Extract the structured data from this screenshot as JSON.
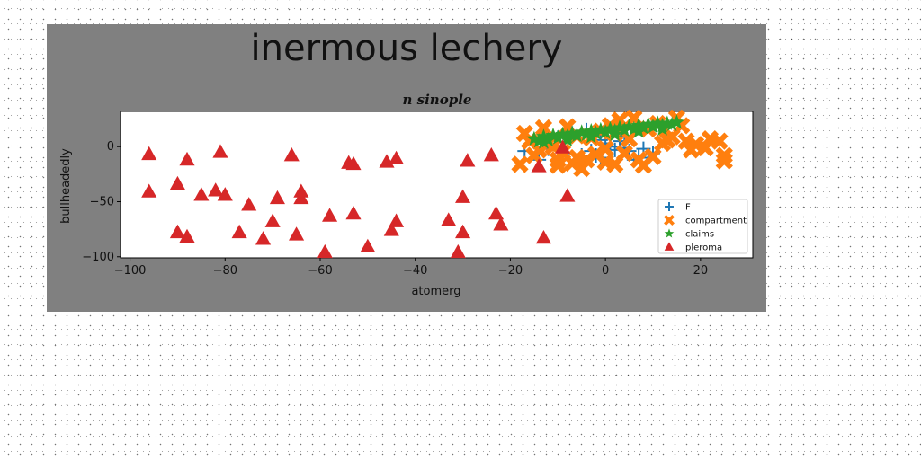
{
  "chart_data": {
    "type": "scatter",
    "title": "inermous lechery",
    "subtitle": "n sinople",
    "xlabel": "atomerg",
    "ylabel": "bullheadedly",
    "xlim": [
      -102,
      31
    ],
    "ylim": [
      -101,
      32
    ],
    "xticks": [
      -100,
      -80,
      -60,
      -40,
      -20,
      0,
      20
    ],
    "yticks": [
      0,
      -50,
      -100
    ],
    "grid": false,
    "legend_position": "lower-right",
    "series": [
      {
        "name": "F",
        "marker": "plus",
        "color": "#1f77b4",
        "points": [
          [
            -17,
            -4
          ],
          [
            -12,
            -2
          ],
          [
            -8,
            -6
          ],
          [
            -5,
            -8
          ],
          [
            -4,
            15
          ],
          [
            -3,
            -4
          ],
          [
            -2,
            -8
          ],
          [
            -1,
            -10
          ],
          [
            0,
            3
          ],
          [
            1,
            0
          ],
          [
            2,
            -3
          ],
          [
            3,
            5
          ],
          [
            4,
            -1
          ],
          [
            5,
            -4
          ],
          [
            6,
            -12
          ],
          [
            7,
            -8
          ],
          [
            8,
            -2
          ],
          [
            9,
            -10
          ],
          [
            10,
            -6
          ],
          [
            -14,
            -12
          ],
          [
            -10,
            8
          ],
          [
            -7,
            12
          ],
          [
            -1,
            6
          ],
          [
            4,
            10
          ]
        ]
      },
      {
        "name": "compartment",
        "marker": "x",
        "color": "#ff7f0e",
        "points": [
          [
            -18,
            -16
          ],
          [
            -17,
            12
          ],
          [
            -15,
            -8
          ],
          [
            -14,
            -3
          ],
          [
            -13,
            17
          ],
          [
            -11,
            0
          ],
          [
            -10,
            -12
          ],
          [
            -9,
            -5
          ],
          [
            -8,
            18
          ],
          [
            -7,
            -15
          ],
          [
            -6,
            10
          ],
          [
            -5,
            -20
          ],
          [
            -4,
            -12
          ],
          [
            -3,
            8
          ],
          [
            -2,
            -7
          ],
          [
            -1,
            14
          ],
          [
            0,
            -2
          ],
          [
            1,
            19
          ],
          [
            2,
            -16
          ],
          [
            3,
            24
          ],
          [
            4,
            -6
          ],
          [
            5,
            7
          ],
          [
            6,
            26
          ],
          [
            7,
            -12
          ],
          [
            8,
            -17
          ],
          [
            9,
            16
          ],
          [
            10,
            -9
          ],
          [
            11,
            21
          ],
          [
            12,
            3
          ],
          [
            13,
            6
          ],
          [
            14,
            9
          ],
          [
            15,
            26
          ],
          [
            16,
            19
          ],
          [
            17,
            5
          ],
          [
            18,
            -3
          ],
          [
            19,
            2
          ],
          [
            21,
            -1
          ],
          [
            22,
            7
          ],
          [
            24,
            5
          ],
          [
            25,
            -8
          ],
          [
            25,
            -13
          ],
          [
            -12,
            3
          ],
          [
            -6,
            -10
          ],
          [
            0,
            -14
          ],
          [
            -16,
            5
          ],
          [
            2,
            12
          ],
          [
            -10,
            -17
          ]
        ]
      },
      {
        "name": "claims",
        "marker": "star",
        "color": "#2ca02c",
        "points": [
          [
            -15,
            7
          ],
          [
            -14,
            5
          ],
          [
            -13,
            9
          ],
          [
            -12,
            6
          ],
          [
            -11,
            10
          ],
          [
            -10,
            8
          ],
          [
            -9,
            11
          ],
          [
            -8,
            9
          ],
          [
            -7,
            12
          ],
          [
            -6,
            10
          ],
          [
            -5,
            13
          ],
          [
            -4,
            11
          ],
          [
            -3,
            14
          ],
          [
            -2,
            12
          ],
          [
            -1,
            15
          ],
          [
            0,
            13
          ],
          [
            1,
            16
          ],
          [
            2,
            14
          ],
          [
            3,
            17
          ],
          [
            4,
            15
          ],
          [
            5,
            18
          ],
          [
            6,
            16
          ],
          [
            7,
            19
          ],
          [
            8,
            17
          ],
          [
            9,
            20
          ],
          [
            10,
            18
          ],
          [
            11,
            21
          ],
          [
            12,
            19
          ],
          [
            13,
            21
          ],
          [
            14,
            20
          ],
          [
            15,
            22
          ],
          [
            -13,
            4
          ],
          [
            -8,
            6
          ],
          [
            -3,
            9
          ],
          [
            2,
            11
          ],
          [
            7,
            14
          ],
          [
            12,
            16
          ]
        ]
      },
      {
        "name": "pleroma",
        "marker": "triangle",
        "color": "#d62728",
        "points": [
          [
            -96,
            -7
          ],
          [
            -96,
            -41
          ],
          [
            -90,
            -34
          ],
          [
            -90,
            -78
          ],
          [
            -88,
            -12
          ],
          [
            -88,
            -82
          ],
          [
            -85,
            -44
          ],
          [
            -82,
            -40
          ],
          [
            -81,
            -5
          ],
          [
            -80,
            -44
          ],
          [
            -77,
            -78
          ],
          [
            -75,
            -53
          ],
          [
            -72,
            -84
          ],
          [
            -70,
            -68
          ],
          [
            -69,
            -47
          ],
          [
            -66,
            -8
          ],
          [
            -65,
            -80
          ],
          [
            -64,
            -47
          ],
          [
            -64,
            -41
          ],
          [
            -59,
            -96
          ],
          [
            -58,
            -63
          ],
          [
            -54,
            -15
          ],
          [
            -53,
            -61
          ],
          [
            -53,
            -16
          ],
          [
            -50,
            -91
          ],
          [
            -46,
            -14
          ],
          [
            -45,
            -76
          ],
          [
            -44,
            -68
          ],
          [
            -44,
            -11
          ],
          [
            -33,
            -67
          ],
          [
            -31,
            -96
          ],
          [
            -30,
            -78
          ],
          [
            -30,
            -46
          ],
          [
            -29,
            -13
          ],
          [
            -24,
            -8
          ],
          [
            -23,
            -61
          ],
          [
            -22,
            -71
          ],
          [
            -14,
            -18
          ],
          [
            -13,
            -83
          ],
          [
            -9,
            -1
          ],
          [
            -8,
            -45
          ]
        ]
      }
    ]
  }
}
